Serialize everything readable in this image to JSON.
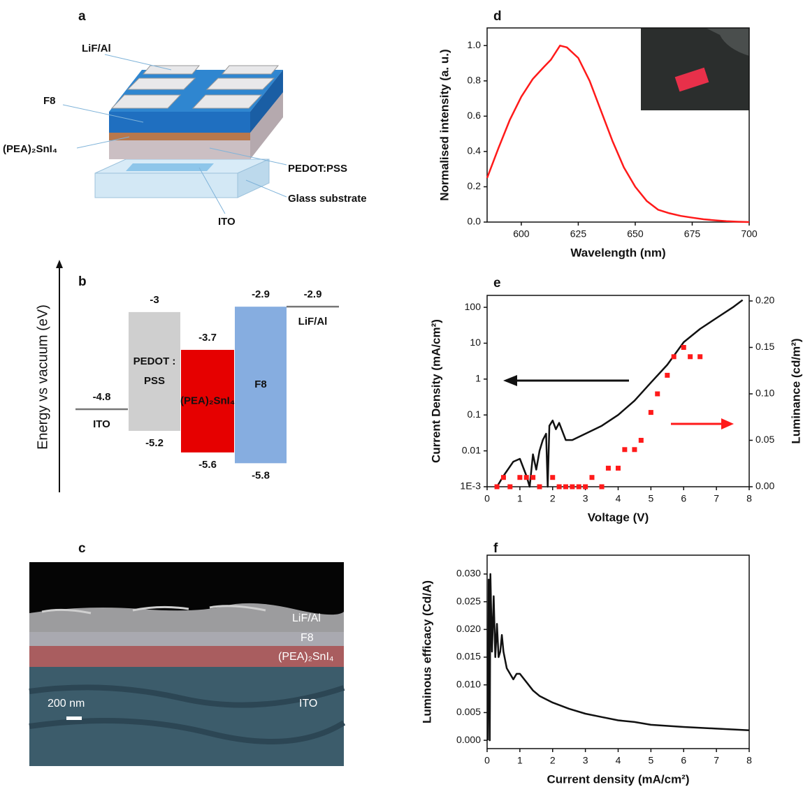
{
  "panel_labels": [
    "a",
    "b",
    "c",
    "d",
    "e",
    "f"
  ],
  "device_diagram": {
    "layers": [
      "LiF/Al",
      "F8",
      "(PEA)₂SnI₄",
      "PEDOT:PSS",
      "Glass substrate",
      "ITO"
    ]
  },
  "energy_diagram": {
    "axis_label": "Energy vs vacuum (eV)",
    "electrodes": [
      {
        "name": "ITO",
        "level": -4.8
      },
      {
        "name": "LiF/Al",
        "level": -2.9
      }
    ],
    "layers": [
      {
        "name": [
          "PEDOT :",
          "PSS"
        ],
        "top": -3,
        "bottom": -5.2,
        "color": "#cfcfcf"
      },
      {
        "name": [
          "(PEA)₂SnI₄"
        ],
        "top": -3.7,
        "bottom": -5.6,
        "color": "#e60000"
      },
      {
        "name": [
          "F8"
        ],
        "top": -2.9,
        "bottom": -5.8,
        "color": "#86ade0"
      }
    ]
  },
  "sem_image": {
    "layers": [
      "LiF/Al",
      "F8",
      "(PEA)₂SnI₄",
      "ITO"
    ],
    "scale_bar": "200 nm"
  },
  "chart_data": [
    {
      "type": "line",
      "x_label": "Wavelength (nm)",
      "y_label": "Normalised intensity (a. u.)",
      "x": [
        585,
        590,
        595,
        600,
        605,
        610,
        613,
        617,
        620,
        625,
        630,
        635,
        640,
        645,
        650,
        655,
        660,
        665,
        670,
        675,
        680,
        685,
        690,
        695,
        700
      ],
      "values": [
        0.25,
        0.42,
        0.58,
        0.71,
        0.81,
        0.88,
        0.92,
        1.0,
        0.99,
        0.93,
        0.8,
        0.63,
        0.46,
        0.31,
        0.2,
        0.12,
        0.07,
        0.05,
        0.035,
        0.025,
        0.016,
        0.01,
        0.005,
        0.002,
        0
      ],
      "color": "#ff1a1a",
      "xlim": [
        585,
        700
      ],
      "xticks": [
        600,
        625,
        650,
        675,
        700
      ],
      "ylim": [
        0,
        1.1
      ],
      "yticks": [
        {
          "value": 0,
          "label": "0.0"
        },
        0.2,
        0.4,
        0.6,
        0.8,
        {
          "value": 1,
          "label": "1.0"
        }
      ]
    },
    {
      "type": "line",
      "x_label": "Voltage (V)",
      "y_label": "Current Density (mA/cm²)",
      "y2_label": "Luminance (cd/m²)",
      "xlim": [
        0,
        8
      ],
      "xticks": [
        0,
        1,
        2,
        3,
        4,
        5,
        6,
        7,
        8
      ],
      "ylim": [
        0.001,
        215
      ],
      "ylog": true,
      "yticks": [
        {
          "value": 0.001,
          "label": "1E-3"
        },
        0.01,
        0.1,
        1,
        10,
        100
      ],
      "y2lim": [
        0,
        0.206
      ],
      "y2ticks": [
        {
          "value": 0,
          "label": "0.00"
        },
        {
          "value": 0.05,
          "label": "0.05"
        },
        {
          "value": 0.1,
          "label": "0.10"
        },
        {
          "value": 0.15,
          "label": "0.15"
        },
        {
          "value": 0.2,
          "label": "0.20"
        }
      ],
      "series": [
        {
          "color": "#111111",
          "x": [
            0.3,
            0.5,
            0.8,
            1.0,
            1.2,
            1.3,
            1.4,
            1.5,
            1.6,
            1.7,
            1.8,
            1.85,
            1.9,
            2.0,
            2.1,
            2.2,
            2.4,
            2.6,
            3.0,
            3.5,
            4.0,
            4.5,
            5.0,
            5.5,
            6.0,
            6.5,
            7.0,
            7.5,
            7.8
          ],
          "values": [
            0.001,
            0.002,
            0.005,
            0.006,
            0.002,
            0.001,
            0.008,
            0.003,
            0.01,
            0.02,
            0.03,
            0.001,
            0.05,
            0.07,
            0.04,
            0.06,
            0.02,
            0.02,
            0.03,
            0.05,
            0.1,
            0.25,
            0.8,
            2.5,
            10.7,
            25,
            50,
            100,
            160
          ]
        },
        {
          "color": "#ff1a1a",
          "axis": "y2",
          "style": "markers",
          "x": [
            0.3,
            0.5,
            0.7,
            1.0,
            1.2,
            1.4,
            1.6,
            2.0,
            2.2,
            2.4,
            2.6,
            2.8,
            3.0,
            3.2,
            3.5,
            3.7,
            4.0,
            4.2,
            4.5,
            4.7,
            5.0,
            5.2,
            5.5,
            5.7,
            6.0,
            6.2,
            6.5
          ],
          "values": [
            0,
            0.01,
            0,
            0.01,
            0.01,
            0.01,
            0,
            0.01,
            0,
            0,
            0,
            0,
            0,
            0.01,
            0,
            0.02,
            0.02,
            0.04,
            0.04,
            0.05,
            0.08,
            0.1,
            0.12,
            0.14,
            0.15,
            0.14,
            0.14
          ]
        }
      ]
    },
    {
      "type": "line",
      "x_label": "Current density (mA/cm²)",
      "y_label": "Luminous efficacy (Cd/A)",
      "x": [
        0.02,
        0.05,
        0.08,
        0.1,
        0.15,
        0.2,
        0.25,
        0.3,
        0.35,
        0.4,
        0.45,
        0.5,
        0.6,
        0.7,
        0.8,
        0.9,
        1.0,
        1.2,
        1.4,
        1.6,
        2.0,
        2.5,
        3.0,
        3.5,
        4.0,
        4.5,
        5.0,
        6.0,
        7.0,
        8.0
      ],
      "values": [
        0,
        0.029,
        0,
        0.03,
        0.016,
        0.026,
        0.015,
        0.021,
        0.015,
        0.016,
        0.019,
        0.016,
        0.013,
        0.012,
        0.011,
        0.012,
        0.012,
        0.0105,
        0.009,
        0.008,
        0.0068,
        0.0057,
        0.0048,
        0.0042,
        0.0036,
        0.0033,
        0.0028,
        0.0024,
        0.0021,
        0.0018
      ],
      "color": "#111111",
      "xlim": [
        0,
        8
      ],
      "xticks": [
        0,
        1,
        2,
        3,
        4,
        5,
        6,
        7,
        8
      ],
      "ylim": [
        -0.0015,
        0.0334
      ],
      "yticks": [
        {
          "value": 0,
          "label": "0.000"
        },
        {
          "value": 0.005,
          "label": "0.005"
        },
        {
          "value": 0.01,
          "label": "0.010"
        },
        {
          "value": 0.015,
          "label": "0.015"
        },
        {
          "value": 0.02,
          "label": "0.020"
        },
        {
          "value": 0.025,
          "label": "0.025"
        },
        {
          "value": 0.03,
          "label": "0.030"
        }
      ]
    }
  ]
}
